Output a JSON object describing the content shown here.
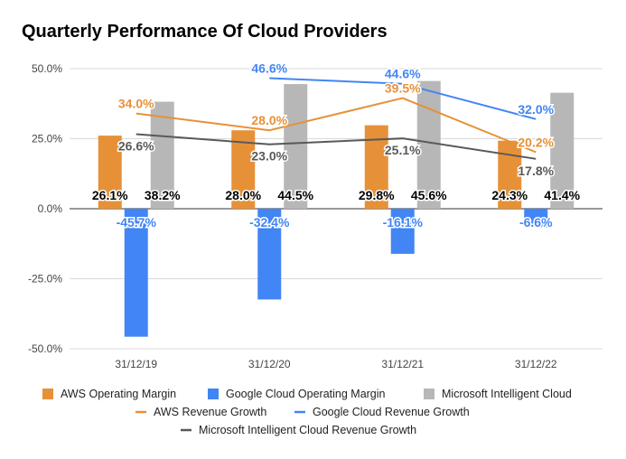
{
  "chart_data": {
    "type": "bar",
    "title": "Quarterly Performance Of Cloud Providers",
    "categories": [
      "31/12/19",
      "31/12/20",
      "31/12/21",
      "31/12/22"
    ],
    "ylim": [
      -50,
      50
    ],
    "yticks": [
      50,
      25,
      0,
      -25,
      -50
    ],
    "ytick_labels": [
      "50.0%",
      "25.0%",
      "0.0%",
      "-25.0%",
      "-50.0%"
    ],
    "grid": true,
    "legend_position": "bottom",
    "bar_series": [
      {
        "name": "AWS Operating Margin",
        "color": "#e69138",
        "values": [
          26.1,
          28.0,
          29.8,
          24.3
        ],
        "labels": [
          "26.1%",
          "28.0%",
          "29.8%",
          "24.3%"
        ]
      },
      {
        "name": "Google Cloud Operating Margin",
        "color": "#4285f4",
        "values": [
          -45.7,
          -32.4,
          -16.1,
          -6.6
        ],
        "labels": [
          "-45.7%",
          "-32.4%",
          "-16.1%",
          "-6.6%"
        ]
      },
      {
        "name": "Microsoft Intelligent Cloud",
        "color": "#b7b7b7",
        "values": [
          38.2,
          44.5,
          45.6,
          41.4
        ],
        "labels": [
          "38.2%",
          "44.5%",
          "45.6%",
          "41.4%"
        ]
      }
    ],
    "line_series": [
      {
        "name": "AWS Revenue Growth",
        "color": "#e69138",
        "values": [
          34.0,
          28.0,
          39.5,
          20.2
        ],
        "labels": [
          "34.0%",
          "28.0%",
          "39.5%",
          "20.2%"
        ]
      },
      {
        "name": "Google Cloud Revenue Growth",
        "color": "#4285f4",
        "values": [
          null,
          46.6,
          44.6,
          32.0
        ],
        "labels": [
          "",
          "46.6%",
          "44.6%",
          "32.0%"
        ]
      },
      {
        "name": "Microsoft Intelligent Cloud Revenue Growth",
        "color": "#595959",
        "values": [
          26.6,
          23.0,
          25.1,
          17.8
        ],
        "labels": [
          "26.6%",
          "23.0%",
          "25.1%",
          "17.8%"
        ]
      }
    ]
  }
}
